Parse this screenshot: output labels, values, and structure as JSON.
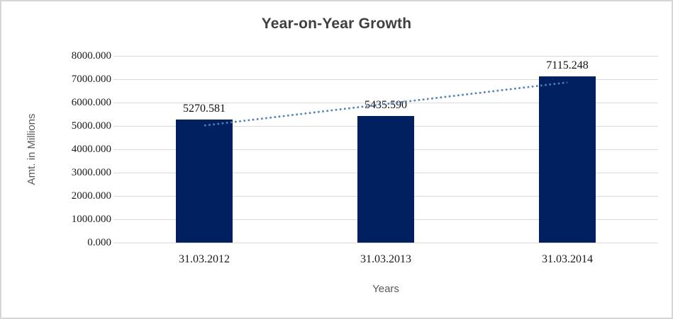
{
  "chart_data": {
    "type": "bar",
    "title": "Year-on-Year Growth",
    "xlabel": "Years",
    "ylabel": "Amt. in Millions",
    "categories": [
      "31.03.2012",
      "31.03.2013",
      "31.03.2014"
    ],
    "values": [
      5270.581,
      5435.59,
      7115.248
    ],
    "data_labels": [
      "5270.581",
      "5435.590",
      "7115.248"
    ],
    "y_ticks": [
      "0.000",
      "1000.000",
      "2000.000",
      "3000.000",
      "4000.000",
      "5000.000",
      "6000.000",
      "7000.000",
      "8000.000"
    ],
    "ylim": [
      0,
      8000
    ],
    "grid": "horizontal",
    "legend": "none",
    "trendline": {
      "type": "linear",
      "style": "dotted"
    },
    "colors": {
      "bar": "#002060",
      "trendline": "#4f81bd",
      "gridline": "#d9d9d9",
      "border": "#d6d6d6",
      "title_text": "#3f3f3f",
      "tick_text": "#1a1a1a",
      "axis_title_text": "#595959"
    }
  }
}
